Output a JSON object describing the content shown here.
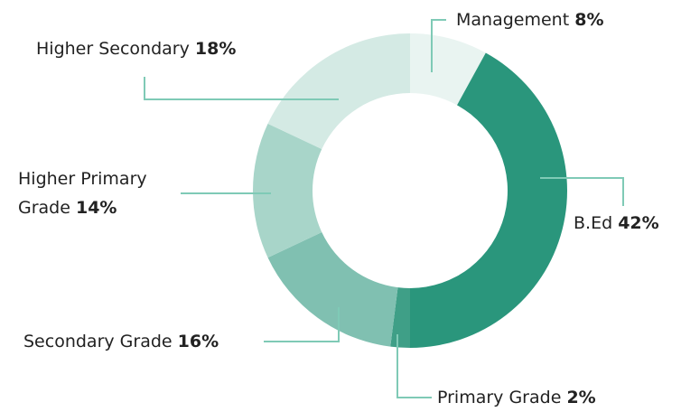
{
  "chart_data": {
    "type": "donut",
    "categories": [
      "Management",
      "B.Ed",
      "Primary Grade",
      "Secondary Grade",
      "Higher Primary Grade",
      "Higher Secondary"
    ],
    "values": [
      8,
      42,
      2,
      16,
      14,
      18
    ],
    "value_labels": [
      "8%",
      "42%",
      "2%",
      "16%",
      "14%",
      "18%"
    ],
    "colors": [
      "#e9f4f1",
      "#2a967c",
      "#3f9f87",
      "#80c0b1",
      "#a8d5c9",
      "#d4eae4"
    ]
  }
}
